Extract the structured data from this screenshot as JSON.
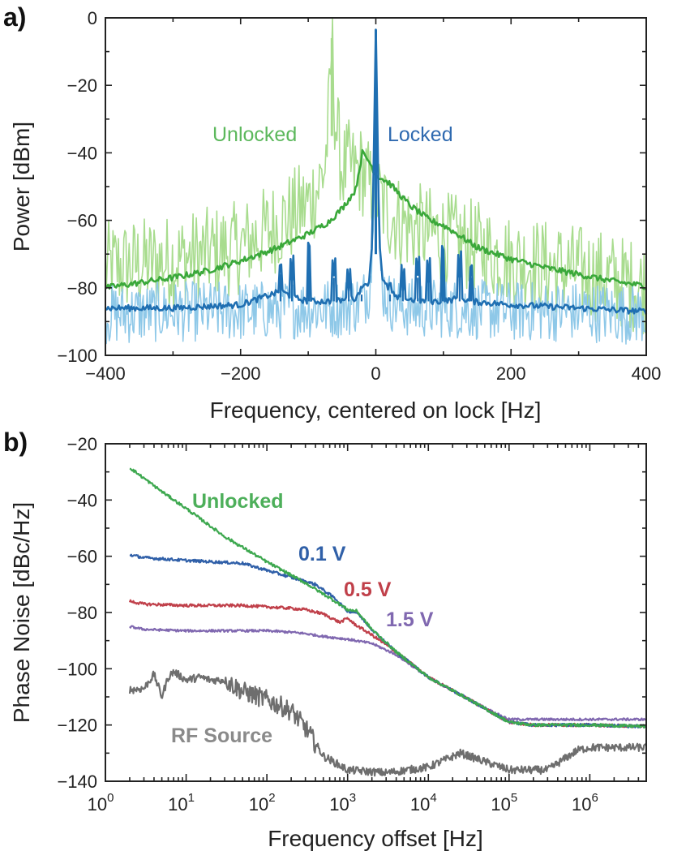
{
  "chart_data": [
    {
      "type": "line",
      "panel_label": "a)",
      "xlabel": "Frequency, centered on lock [Hz]",
      "ylabel": "Power [dBm]",
      "xlim": [
        -400,
        400
      ],
      "ylim": [
        -100,
        0
      ],
      "x_ticks": [
        -400,
        -200,
        0,
        200,
        400
      ],
      "x_tick_labels": [
        "−400",
        "−200",
        "0",
        "200",
        "400"
      ],
      "y_ticks": [
        0,
        -20,
        -40,
        -60,
        -80,
        -100
      ],
      "y_tick_labels": [
        "0",
        "−20",
        "−40",
        "−60",
        "−80",
        "−100"
      ],
      "annotations": [
        {
          "text": "Unlocked",
          "color": "#5cb85c"
        },
        {
          "text": "Locked",
          "color": "#2f6ab0"
        }
      ],
      "series": [
        {
          "name": "Unlocked (raw)",
          "color": "#a8dc8e",
          "x": [
            -400,
            -300,
            -200,
            -150,
            -120,
            -100,
            -85,
            -75,
            -68,
            -65,
            -60,
            -50,
            -40,
            -30,
            -20,
            -10,
            0,
            20,
            50,
            100,
            150,
            200,
            300,
            400
          ],
          "y": [
            -74,
            -72,
            -68,
            -62,
            -58,
            -55,
            -50,
            -44,
            -25,
            -6,
            -30,
            -45,
            -44,
            -46,
            -45,
            -50,
            -52,
            -58,
            -62,
            -65,
            -68,
            -72,
            -75,
            -80
          ]
        },
        {
          "name": "Unlocked (averaged)",
          "color": "#3aa83a",
          "x": [
            -400,
            -350,
            -300,
            -250,
            -200,
            -150,
            -100,
            -70,
            -50,
            -30,
            -20,
            -10,
            0,
            20,
            50,
            80,
            100,
            120,
            150,
            200,
            250,
            300,
            350,
            400
          ],
          "y": [
            -80,
            -78.5,
            -77,
            -75,
            -72,
            -68.5,
            -64,
            -60.5,
            -56.5,
            -51,
            -40,
            -42.5,
            -46.5,
            -49,
            -55.5,
            -60,
            -61.5,
            -64,
            -68,
            -71.5,
            -74,
            -76,
            -78,
            -79.5
          ]
        },
        {
          "name": "Locked (raw)",
          "color": "#8ec8e8",
          "x": [
            -400,
            -300,
            -200,
            -100,
            -50,
            -20,
            -10,
            -5,
            0,
            5,
            10,
            20,
            50,
            100,
            200,
            300,
            400
          ],
          "y": [
            -88,
            -87,
            -87,
            -86,
            -86,
            -84,
            -80,
            -70,
            -3.5,
            -70,
            -80,
            -84,
            -86,
            -86,
            -87,
            -87,
            -88
          ]
        },
        {
          "name": "Locked (averaged)",
          "color": "#1f6fb2",
          "x": [
            -400,
            -300,
            -200,
            -140,
            -120,
            -100,
            -60,
            -30,
            -10,
            -5,
            0,
            5,
            10,
            30,
            75,
            100,
            125,
            140,
            200,
            300,
            400
          ],
          "y": [
            -86,
            -86,
            -85,
            -81,
            -83,
            -84,
            -84,
            -83,
            -78,
            -65,
            -3.5,
            -65,
            -78,
            -83,
            -84,
            -84,
            -83,
            -84,
            -85,
            -86,
            -87
          ]
        }
      ],
      "locked_spurs": [
        {
          "x": -141,
          "y": -76
        },
        {
          "x": -124,
          "y": -77
        },
        {
          "x": -99,
          "y": -70
        },
        {
          "x": -62,
          "y": -77
        },
        {
          "x": -40,
          "y": -80
        },
        {
          "x": -21,
          "y": -82
        },
        {
          "x": 21,
          "y": -82
        },
        {
          "x": 40,
          "y": -80
        },
        {
          "x": 62,
          "y": -77
        },
        {
          "x": 78,
          "y": -78
        },
        {
          "x": 99,
          "y": -71
        },
        {
          "x": 124,
          "y": -76
        },
        {
          "x": 141,
          "y": -77
        }
      ]
    },
    {
      "type": "line",
      "panel_label": "b)",
      "xlabel": "Frequency offset [Hz]",
      "ylabel": "Phase Noise [dBc/Hz]",
      "xscale": "log",
      "xlim": [
        1,
        5000000
      ],
      "ylim": [
        -140,
        -20
      ],
      "x_ticks": [
        1,
        10,
        100,
        1000,
        10000,
        100000,
        1000000
      ],
      "x_tick_base": "10",
      "x_tick_exponents": [
        "0",
        "1",
        "2",
        "3",
        "4",
        "5",
        "6"
      ],
      "y_ticks": [
        -20,
        -40,
        -60,
        -80,
        -100,
        -120,
        -140
      ],
      "y_tick_labels": [
        "−20",
        "−40",
        "−60",
        "−80",
        "−100",
        "−120",
        "−140"
      ],
      "series": [
        {
          "name": "Unlocked",
          "color": "#3da84f",
          "x": [
            2,
            5,
            10,
            30,
            100,
            300,
            700,
            1000,
            1300,
            2000,
            4000,
            10000,
            30000,
            70000,
            100000,
            200000,
            500000,
            1000000,
            5000000
          ],
          "y": [
            -28.5,
            -37,
            -43,
            -53,
            -62,
            -69.5,
            -76,
            -79,
            -79.5,
            -86,
            -94,
            -103,
            -110.5,
            -116.5,
            -119,
            -120,
            -120,
            -120,
            -120.5
          ]
        },
        {
          "name": "0.1 V",
          "color": "#2f5fa8",
          "x": [
            2,
            3,
            10,
            50,
            100,
            200,
            400,
            700,
            1000,
            1300,
            2000,
            4000,
            10000,
            30000,
            70000,
            100000,
            200000,
            500000,
            1000000,
            5000000
          ],
          "y": [
            -59.5,
            -60.5,
            -61.5,
            -62.5,
            -65,
            -67.5,
            -70,
            -75,
            -79.5,
            -80,
            -86,
            -94,
            -103,
            -110.5,
            -116.5,
            -119,
            -120,
            -120,
            -120,
            -120.5
          ]
        },
        {
          "name": "0.5 V",
          "color": "#c0404a",
          "x": [
            2,
            3,
            10,
            50,
            100,
            200,
            300,
            500,
            800,
            1000,
            1200,
            2000,
            4000,
            10000,
            30000,
            70000,
            100000,
            200000,
            500000,
            1000000,
            5000000
          ],
          "y": [
            -76,
            -77,
            -77.5,
            -77.5,
            -78,
            -78.5,
            -79,
            -80.5,
            -83.5,
            -82,
            -84,
            -88,
            -94,
            -103,
            -110.5,
            -116.5,
            -119,
            -120,
            -120,
            -120,
            -120.5
          ]
        },
        {
          "name": "1.5 V",
          "color": "#8068b0",
          "x": [
            2,
            3,
            10,
            50,
            100,
            200,
            300,
            500,
            1000,
            2000,
            4000,
            10000,
            30000,
            70000,
            100000,
            200000,
            500000,
            1000000,
            5000000
          ],
          "y": [
            -85,
            -86,
            -86.5,
            -86.5,
            -86.5,
            -87,
            -87.5,
            -88.5,
            -89.5,
            -91,
            -95,
            -103,
            -110.5,
            -116,
            -118,
            -118,
            -118,
            -118,
            -118
          ]
        },
        {
          "name": "RF Source",
          "color": "#6e6e6e",
          "x": [
            2,
            3,
            4,
            5,
            6,
            7,
            10,
            15,
            20,
            30,
            50,
            100,
            200,
            300,
            500,
            1000,
            3000,
            10000,
            25000,
            100000,
            300000,
            700000,
            1000000,
            5000000
          ],
          "y": [
            -107.5,
            -107,
            -102,
            -110,
            -103,
            -101,
            -104,
            -103,
            -104,
            -104,
            -108,
            -111,
            -115,
            -121,
            -131,
            -136,
            -137,
            -135,
            -130,
            -136,
            -136,
            -129,
            -128,
            -128
          ]
        }
      ],
      "annotations": [
        {
          "text": "Unlocked",
          "color": "#4daf5a"
        },
        {
          "text": "0.1 V",
          "color": "#3060a8"
        },
        {
          "text": "0.5 V",
          "color": "#c0404a"
        },
        {
          "text": "1.5 V",
          "color": "#8068b0"
        },
        {
          "text": "RF Source",
          "color": "#8a8a8a"
        }
      ]
    }
  ]
}
